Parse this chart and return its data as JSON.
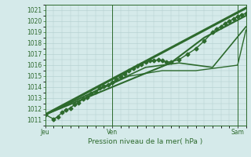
{
  "title": "",
  "xlabel": "Pression niveau de la mer( hPa )",
  "ylabel": "",
  "bg_color": "#d5eaea",
  "grid_color": "#b0cccc",
  "line_color": "#2d6a2d",
  "ylim": [
    1010.5,
    1021.5
  ],
  "xlim": [
    0,
    48
  ],
  "xtick_positions": [
    0,
    16,
    46
  ],
  "xtick_labels": [
    "Jeu",
    "Ven",
    "Sam"
  ],
  "ytick_positions": [
    1011,
    1012,
    1013,
    1014,
    1015,
    1016,
    1017,
    1018,
    1019,
    1020,
    1021
  ],
  "vlines": [
    16,
    46
  ],
  "series": [
    {
      "x": [
        0,
        2,
        3,
        4,
        5,
        6,
        7,
        8,
        9,
        10,
        11,
        12,
        13,
        14,
        15,
        16,
        17,
        18,
        19,
        20,
        21,
        22,
        23,
        24,
        25,
        26,
        27,
        28,
        29,
        30,
        32,
        34,
        36,
        38,
        40,
        41,
        42,
        43,
        44,
        45,
        46,
        47,
        48
      ],
      "y": [
        1011.5,
        1011.1,
        1011.3,
        1011.7,
        1011.9,
        1012.1,
        1012.4,
        1012.6,
        1012.9,
        1013.1,
        1013.4,
        1013.6,
        1013.9,
        1014.1,
        1014.2,
        1014.4,
        1014.7,
        1014.9,
        1015.2,
        1015.5,
        1015.7,
        1015.9,
        1016.1,
        1016.3,
        1016.4,
        1016.4,
        1016.5,
        1016.4,
        1016.3,
        1016.3,
        1016.5,
        1017.0,
        1017.5,
        1018.2,
        1019.0,
        1019.3,
        1019.5,
        1019.8,
        1020.0,
        1020.2,
        1020.4,
        1020.6,
        1020.7
      ],
      "marker": "D",
      "markersize": 2.5,
      "linewidth": 1.0
    },
    {
      "x": [
        0,
        48
      ],
      "y": [
        1011.5,
        1021.2
      ],
      "marker": null,
      "markersize": 0,
      "linewidth": 2.2
    },
    {
      "x": [
        0,
        30,
        38,
        48
      ],
      "y": [
        1011.5,
        1016.2,
        1018.5,
        1020.5
      ],
      "marker": null,
      "markersize": 0,
      "linewidth": 1.5
    },
    {
      "x": [
        0,
        24,
        32,
        40,
        48
      ],
      "y": [
        1011.5,
        1015.8,
        1016.2,
        1015.8,
        1019.5
      ],
      "marker": null,
      "markersize": 0,
      "linewidth": 1.2
    },
    {
      "x": [
        0,
        20,
        28,
        36,
        46,
        48
      ],
      "y": [
        1011.5,
        1015.0,
        1015.5,
        1015.5,
        1016.0,
        1019.2
      ],
      "marker": null,
      "markersize": 0,
      "linewidth": 1.0
    }
  ]
}
